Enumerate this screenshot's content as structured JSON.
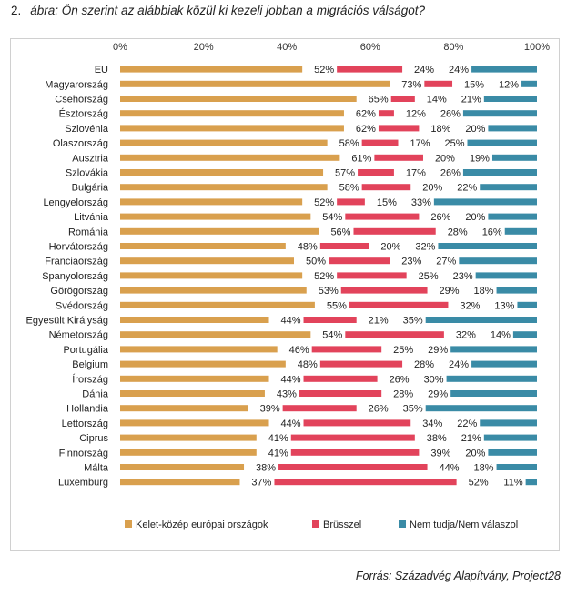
{
  "figure": {
    "number": "2.",
    "title": "ábra: Ön szerint az alábbiak közül ki kezeli jobban a migrációs válságot?",
    "source": "Forrás: Századvég Alapítvány, Project28"
  },
  "chart_data": {
    "type": "bar",
    "orientation": "horizontal",
    "stacked": "percent",
    "title": "Ön szerint az alábbiak közül ki kezeli jobban a migrációs válságot?",
    "xlabel": "",
    "ylabel": "",
    "xlim": [
      0,
      100
    ],
    "x_ticks": [
      "0%",
      "20%",
      "40%",
      "60%",
      "80%",
      "100%"
    ],
    "legend_position": "bottom",
    "categories": [
      "EU",
      "Magyarország",
      "Csehország",
      "Észtország",
      "Szlovénia",
      "Olaszország",
      "Ausztria",
      "Szlovákia",
      "Bulgária",
      "Lengyelország",
      "Litvánia",
      "Románia",
      "Horvátország",
      "Franciaország",
      "Spanyolország",
      "Görögország",
      "Svédország",
      "Egyesült Királyság",
      "Németország",
      "Portugália",
      "Belgium",
      "Írország",
      "Dánia",
      "Hollandia",
      "Lettország",
      "Ciprus",
      "Finnország",
      "Málta",
      "Luxemburg"
    ],
    "series": [
      {
        "name": "Kelet-közép európai országok",
        "color": "#d9a04e",
        "values": [
          52,
          73,
          65,
          62,
          62,
          58,
          61,
          57,
          58,
          52,
          54,
          56,
          48,
          50,
          52,
          53,
          55,
          44,
          54,
          46,
          48,
          44,
          43,
          39,
          44,
          41,
          41,
          38,
          37
        ]
      },
      {
        "name": "Brüsszel",
        "color": "#e2435b",
        "values": [
          24,
          15,
          14,
          12,
          18,
          17,
          20,
          17,
          20,
          15,
          26,
          28,
          20,
          23,
          25,
          29,
          32,
          21,
          32,
          25,
          28,
          26,
          28,
          26,
          34,
          38,
          39,
          44,
          52
        ]
      },
      {
        "name": "Nem tudja/Nem válaszol",
        "color": "#3a8ba6",
        "values": [
          24,
          12,
          21,
          26,
          20,
          25,
          19,
          26,
          22,
          33,
          20,
          16,
          32,
          27,
          23,
          18,
          13,
          35,
          14,
          29,
          24,
          30,
          29,
          35,
          22,
          21,
          20,
          18,
          11
        ]
      }
    ]
  }
}
